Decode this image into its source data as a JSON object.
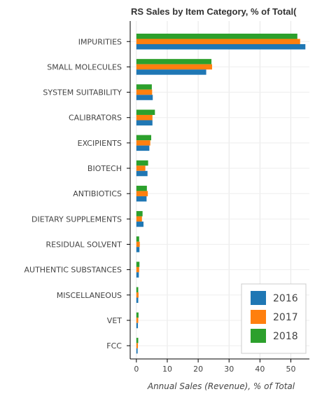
{
  "chart_data": {
    "type": "bar",
    "orientation": "horizontal",
    "title": "RS Sales by Item Category, % of Total(",
    "xlabel": "Annual Sales (Revenue), % of Total",
    "ylabel": "",
    "xlim": [
      -2,
      56
    ],
    "xticks": [
      0,
      10,
      20,
      30,
      40,
      50
    ],
    "grid": true,
    "legend": "bottom-right",
    "categories": [
      "IMPURITIES",
      "SMALL MOLECULES",
      "SYSTEM SUITABILITY",
      "CALIBRATORS",
      "EXCIPIENTS",
      "BIOTECH",
      "ANTIBIOTICS",
      "DIETARY SUPPLEMENTS",
      "RESIDUAL SOLVENT",
      "AUTHENTIC SUBSTANCES",
      "MISCELLANEOUS",
      "VET",
      "FCC"
    ],
    "series": [
      {
        "name": "2016",
        "color": "#1f77b4",
        "values": [
          54.7,
          22.6,
          5.3,
          5.2,
          4.2,
          3.6,
          3.3,
          2.3,
          1.0,
          0.8,
          0.6,
          0.5,
          0.4
        ]
      },
      {
        "name": "2017",
        "color": "#ff7f0e",
        "values": [
          53.0,
          24.5,
          5.1,
          5.2,
          4.5,
          2.9,
          3.7,
          1.8,
          1.1,
          0.9,
          0.7,
          0.6,
          0.5
        ]
      },
      {
        "name": "2018",
        "color": "#2ca02c",
        "values": [
          52.1,
          24.3,
          5.0,
          6.0,
          4.8,
          3.8,
          3.4,
          2.0,
          0.9,
          1.0,
          0.6,
          0.7,
          0.6
        ]
      }
    ]
  }
}
